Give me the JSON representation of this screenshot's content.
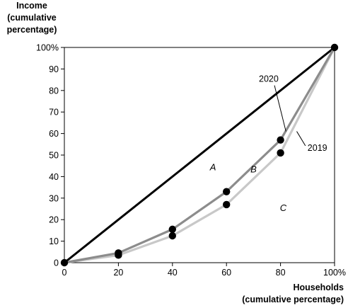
{
  "chart_data": {
    "type": "line",
    "ylabel_lines": [
      "Income",
      "(cumulative",
      "percentage)"
    ],
    "xlabel_lines": [
      "Households",
      "(cumulative percentage)"
    ],
    "x_ticks": [
      "0",
      "20",
      "40",
      "60",
      "80",
      "100%"
    ],
    "y_ticks": [
      "0",
      "10",
      "20",
      "30",
      "40",
      "50",
      "60",
      "70",
      "80",
      "90",
      "100%"
    ],
    "xlim": [
      0,
      100
    ],
    "ylim": [
      0,
      100
    ],
    "grid": false,
    "equality_line": {
      "x": [
        0,
        100
      ],
      "y": [
        0,
        100
      ],
      "color": "#000000"
    },
    "series": [
      {
        "name": "2020",
        "x": [
          0,
          20,
          40,
          60,
          80,
          100
        ],
        "y": [
          0,
          4.5,
          15.5,
          33,
          57,
          100
        ],
        "color": "#8c8c8c"
      },
      {
        "name": "2019",
        "x": [
          0,
          20,
          40,
          60,
          80,
          100
        ],
        "y": [
          0,
          3.5,
          12.5,
          27,
          51,
          100
        ],
        "color": "#c8c8c8"
      }
    ],
    "area_labels": [
      {
        "text": "A",
        "x": 55,
        "y": 43
      },
      {
        "text": "B",
        "x": 70,
        "y": 42
      },
      {
        "text": "C",
        "x": 81,
        "y": 24
      }
    ],
    "annotations": [
      {
        "text": "2020",
        "x": 72,
        "y": 84,
        "target": [
          82,
          61
        ]
      },
      {
        "text": "2019",
        "x": 90,
        "y": 52,
        "target": [
          86,
          61
        ]
      }
    ]
  }
}
